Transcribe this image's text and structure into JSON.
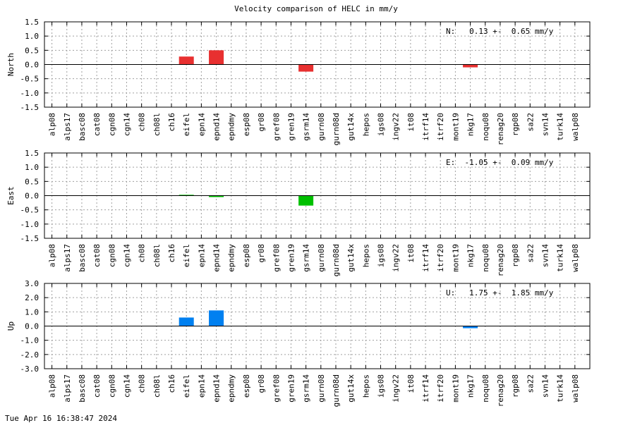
{
  "chart_data": {
    "type": "bar",
    "title": "Velocity comparison of HELC in mm/y",
    "timestamp": "Tue Apr 16 16:38:47 2024",
    "categories": [
      "alp08",
      "alps17",
      "basc08",
      "cat08",
      "cgn08",
      "cgn14",
      "ch08",
      "ch08l",
      "ch16",
      "eifel",
      "epn14",
      "epnd14",
      "epndmy",
      "esp08",
      "gr08",
      "gref08",
      "gren19",
      "gsrm14",
      "gurn08",
      "gurn08d",
      "gut14x",
      "hepos",
      "igs08",
      "ingv22",
      "it08",
      "itrf14",
      "itrf20",
      "mont19",
      "nkg17",
      "noqu08",
      "renag20",
      "rgp08",
      "sa22",
      "svn14",
      "turk14",
      "walp08"
    ],
    "grid": true,
    "panels": [
      {
        "ylabel": "North",
        "component": "N",
        "color": "#e83030",
        "ylim": [
          -1.5,
          1.5
        ],
        "yticks": [
          1.5,
          1.0,
          0.5,
          0.0,
          -0.5,
          -1.0,
          -1.5
        ],
        "ytick_labels": [
          "1.5",
          "1.0",
          "0.5",
          "0.0",
          "-0.5",
          "-1.0",
          "-1.5"
        ],
        "annotation": "N:   0.13 +-  0.65 mm/y",
        "values": [
          0,
          0,
          0,
          0,
          0,
          0,
          0,
          0,
          0,
          0.28,
          0,
          0.5,
          0,
          0,
          0,
          0,
          0,
          -0.25,
          0,
          0,
          0,
          0,
          0,
          0,
          0,
          0,
          0,
          0,
          -0.1,
          0,
          0,
          0,
          0,
          0,
          0,
          0
        ]
      },
      {
        "ylabel": "East",
        "component": "E",
        "color": "#00c000",
        "ylim": [
          -1.5,
          1.5
        ],
        "yticks": [
          1.5,
          1.0,
          0.5,
          0.0,
          -0.5,
          -1.0,
          -1.5
        ],
        "ytick_labels": [
          "1.5",
          "1.0",
          "0.5",
          "0.0",
          "-0.5",
          "-1.0",
          "-1.5"
        ],
        "annotation": "E:  -1.05 +-  0.09 mm/y",
        "values": [
          0,
          0,
          0,
          0,
          0,
          0,
          0,
          0,
          0,
          0.03,
          0,
          -0.05,
          0,
          0,
          0,
          0,
          0,
          -0.35,
          0,
          0,
          0,
          0,
          0,
          0,
          0,
          0,
          0,
          0,
          0,
          0,
          0,
          0,
          0,
          0,
          0,
          0
        ]
      },
      {
        "ylabel": "Up",
        "component": "U",
        "color": "#0080f0",
        "ylim": [
          -3.0,
          3.0
        ],
        "yticks": [
          3.0,
          2.0,
          1.0,
          0.0,
          -1.0,
          -2.0,
          -3.0
        ],
        "ytick_labels": [
          "3.0",
          "2.0",
          "1.0",
          "0.0",
          "-1.0",
          "-2.0",
          "-3.0"
        ],
        "annotation": "U:   1.75 +-  1.85 mm/y",
        "values": [
          0,
          0,
          0,
          0,
          0,
          0,
          0,
          0,
          0,
          0.6,
          0,
          1.1,
          0,
          0,
          0,
          0,
          0,
          0,
          0,
          0,
          0,
          0,
          0,
          0,
          0,
          0,
          0,
          0,
          -0.15,
          0,
          0,
          0,
          0,
          0,
          0,
          0
        ]
      }
    ]
  }
}
